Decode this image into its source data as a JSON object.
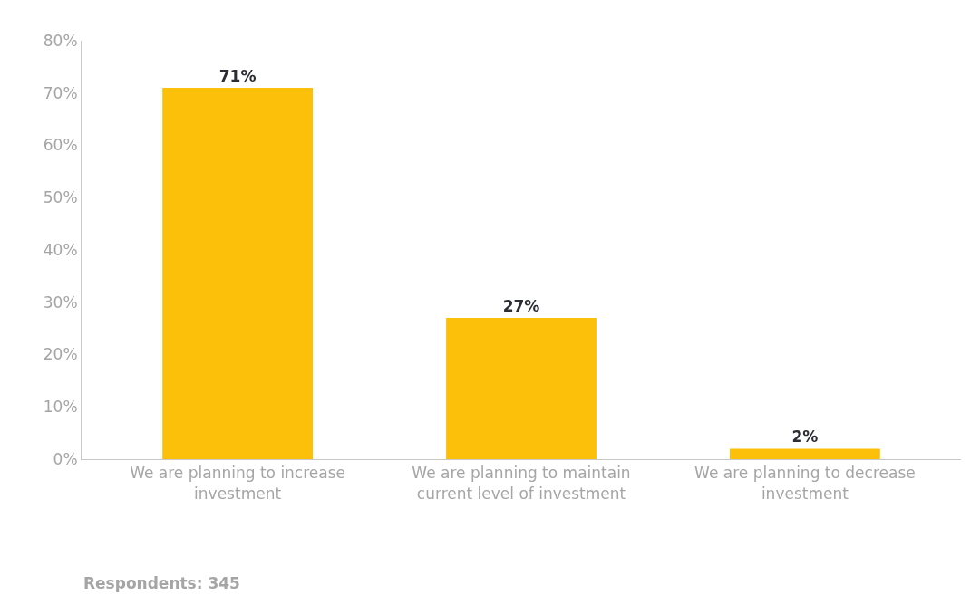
{
  "chart_data": {
    "type": "bar",
    "categories": [
      "We are planning to increase investment",
      "We are planning to maintain current level of investment",
      "We are planning to decrease investment"
    ],
    "values": [
      71,
      27,
      2
    ],
    "value_labels": [
      "71%",
      "27%",
      "2%"
    ],
    "color": "#fcc00a",
    "ylim": [
      0,
      80
    ],
    "yticks": [
      {
        "value": 0,
        "label": "0%"
      },
      {
        "value": 10,
        "label": "10%"
      },
      {
        "value": 20,
        "label": "20%"
      },
      {
        "value": 30,
        "label": "30%"
      },
      {
        "value": 40,
        "label": "40%"
      },
      {
        "value": 50,
        "label": "50%"
      },
      {
        "value": 60,
        "label": "60%"
      },
      {
        "value": 70,
        "label": "70%"
      },
      {
        "value": 80,
        "label": "80%"
      }
    ],
    "grid": false,
    "annotations": [
      "Respondents: 345"
    ]
  }
}
